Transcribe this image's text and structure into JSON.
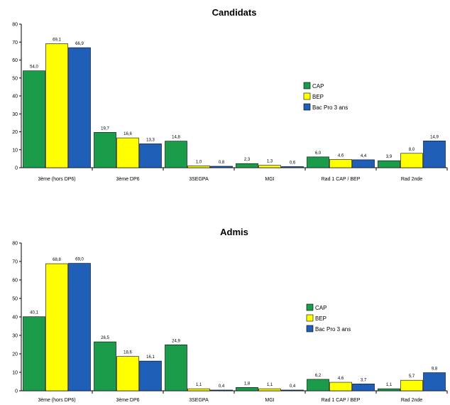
{
  "chart_data": [
    {
      "type": "bar",
      "title": "Candidats",
      "categories": [
        "3ème (hors DP6)",
        "3ème DP6",
        "3SEGPA",
        "MGI",
        "Rad 1 CAP / BEP",
        "Rad 2nde"
      ],
      "series": [
        {
          "name": "CAP",
          "values": [
            54.0,
            19.7,
            14.8,
            2.3,
            6.0,
            3.9
          ],
          "labels": [
            "54,0",
            "19,7",
            "14,8",
            "2,3",
            "6,0",
            "3,9"
          ]
        },
        {
          "name": "BEP",
          "values": [
            69.1,
            16.6,
            1.0,
            1.3,
            4.6,
            8.0
          ],
          "labels": [
            "69,1",
            "16,6",
            "1,0",
            "1,3",
            "4,6",
            "8,0"
          ]
        },
        {
          "name": "Bac Pro 3 ans",
          "values": [
            66.9,
            13.3,
            0.8,
            0.6,
            4.4,
            14.9
          ],
          "labels": [
            "66,9",
            "13,3",
            "0,8",
            "0,6",
            "4,4",
            "14,9"
          ]
        }
      ],
      "ylim": [
        0,
        80
      ],
      "yticks": [
        0,
        10,
        20,
        30,
        40,
        50,
        60,
        70,
        80
      ],
      "legend_position": "right",
      "colors": {
        "CAP": "#1a9c4a",
        "BEP": "#ffff00",
        "Bac Pro 3 ans": "#1f5fb8"
      }
    },
    {
      "type": "bar",
      "title": "Admis",
      "categories": [
        "3ème (hors DP6)",
        "3ème DP6",
        "3SEGPA",
        "MGI",
        "Rad 1 CAP / BEP",
        "Rad 2nde"
      ],
      "series": [
        {
          "name": "CAP",
          "values": [
            40.1,
            26.5,
            24.9,
            1.8,
            6.2,
            1.1
          ],
          "labels": [
            "40,1",
            "26,5",
            "24,9",
            "1,8",
            "6,2",
            "1,1"
          ]
        },
        {
          "name": "BEP",
          "values": [
            68.8,
            18.6,
            1.1,
            1.1,
            4.6,
            5.7
          ],
          "labels": [
            "68,8",
            "18,6",
            "1,1",
            "1,1",
            "4,6",
            "5,7"
          ]
        },
        {
          "name": "Bac Pro 3 ans",
          "values": [
            69.0,
            16.1,
            0.4,
            0.4,
            3.7,
            9.8
          ],
          "labels": [
            "69,0",
            "16,1",
            "0,4",
            "0,4",
            "3,7",
            "9,8"
          ]
        }
      ],
      "ylim": [
        0,
        80
      ],
      "yticks": [
        0,
        10,
        20,
        30,
        40,
        50,
        60,
        70,
        80
      ],
      "legend_position": "right",
      "colors": {
        "CAP": "#1a9c4a",
        "BEP": "#ffff00",
        "Bac Pro 3 ans": "#1f5fb8"
      }
    }
  ]
}
